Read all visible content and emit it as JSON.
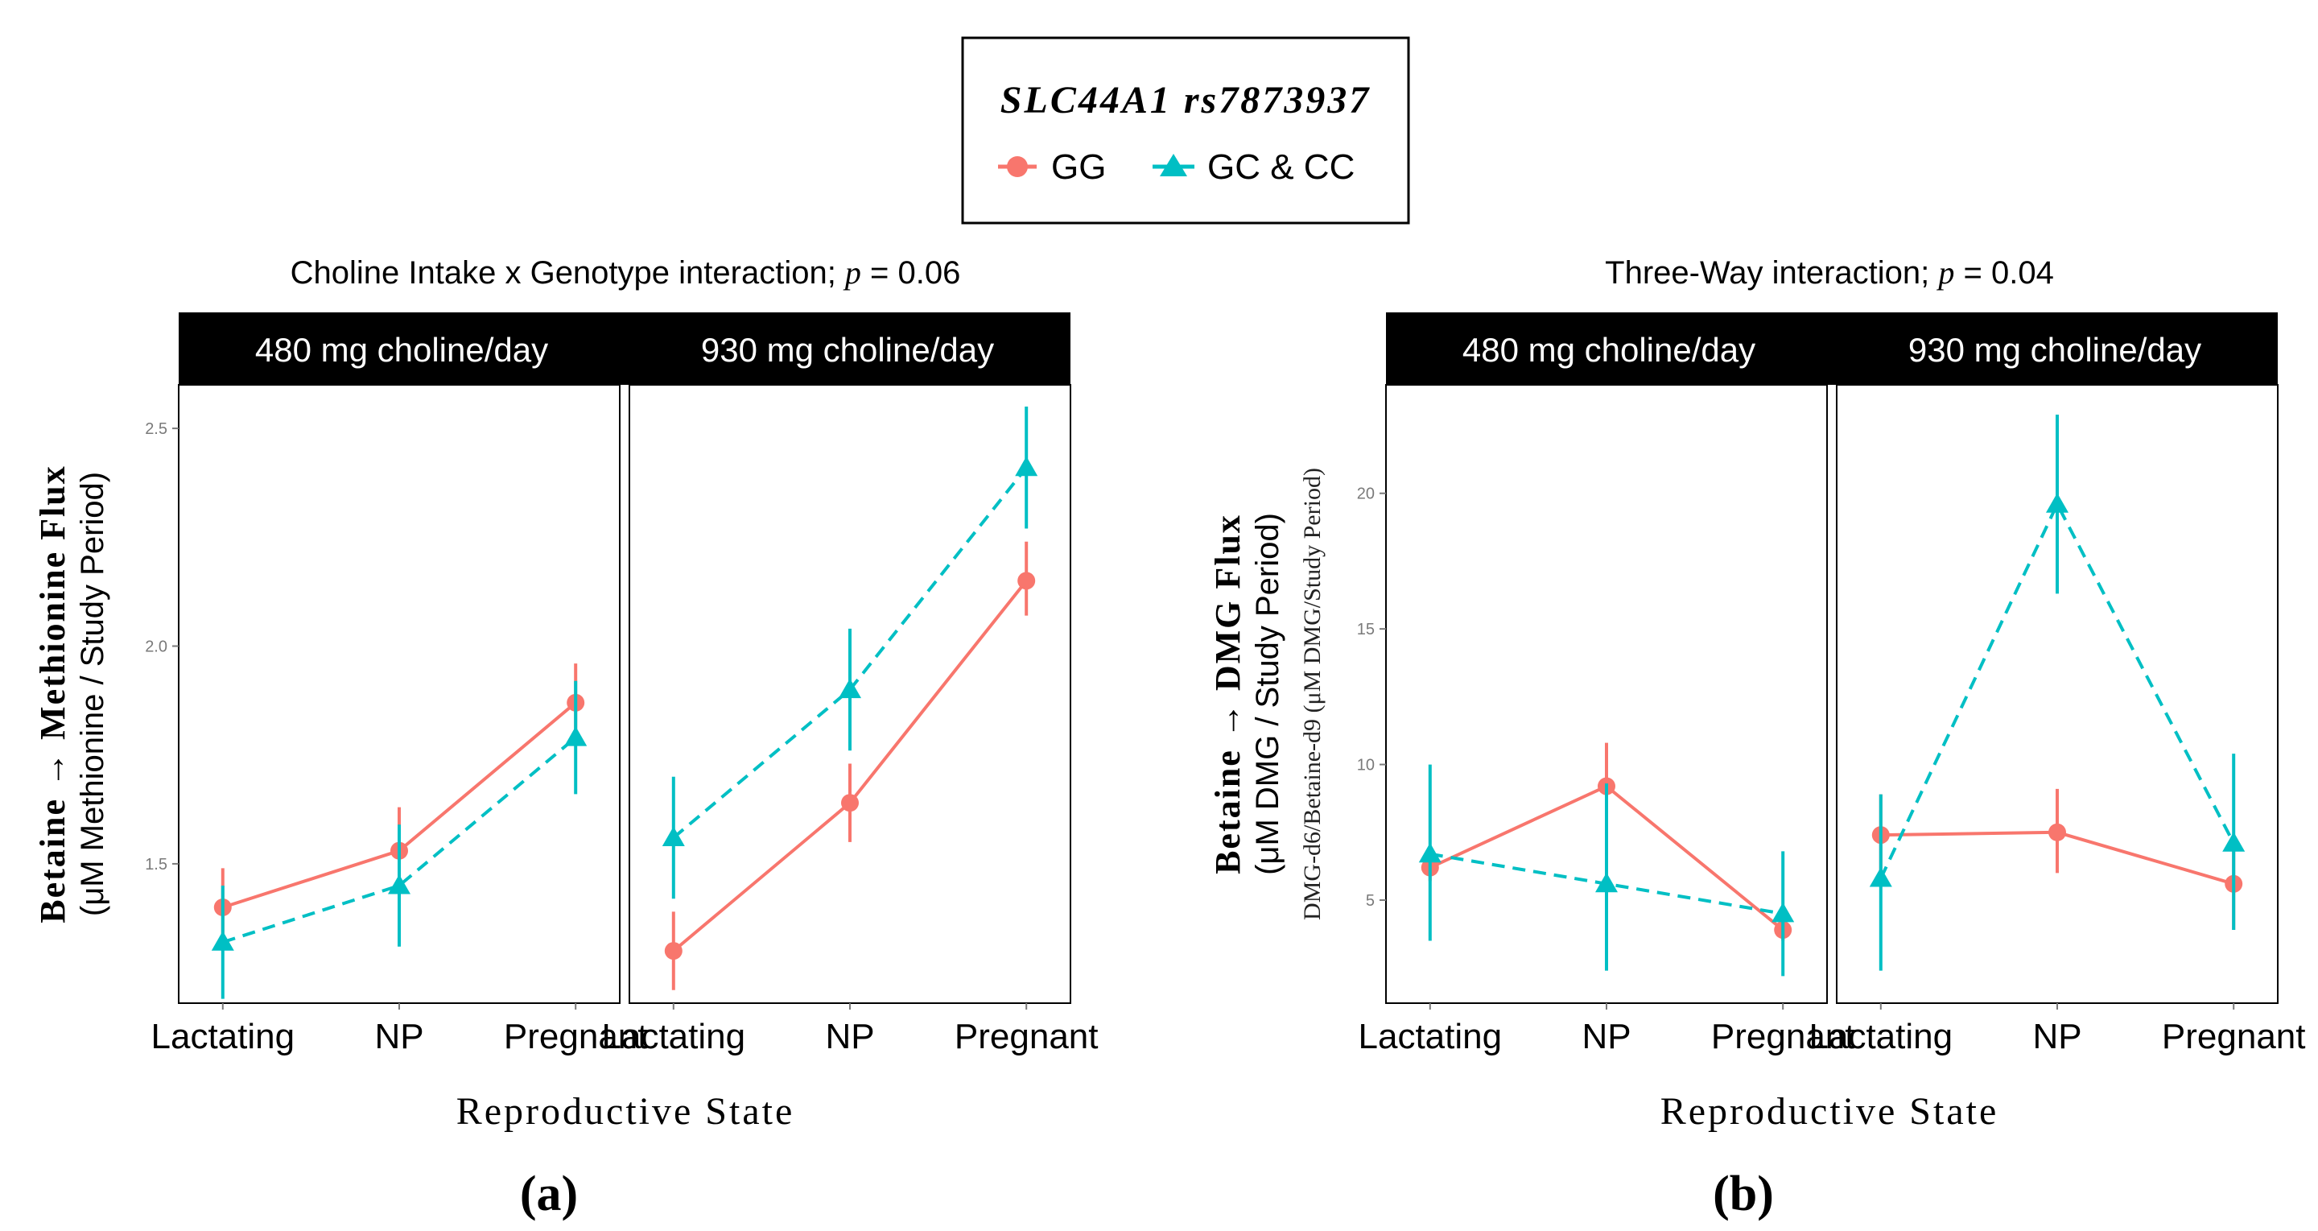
{
  "legend": {
    "title": "SLC44A1 rs7873937",
    "series": [
      {
        "name": "GG",
        "color": "#F8766D",
        "marker": "circle",
        "line": "solid"
      },
      {
        "name": "GC & CC",
        "color": "#00BFC4",
        "marker": "triangle",
        "line": "dashed"
      }
    ]
  },
  "chart_data": [
    {
      "type": "line",
      "panel_label": "(a)",
      "title_prefix": "Choline Intake x Genotype interaction; ",
      "title_p_symbol": "p",
      "title_p_value": " = 0.06",
      "ylabel_main": "Betaine → Methionine Flux",
      "ylabel_sub": "(μM Methionine / Study Period)",
      "xlabel": "Reproductive State",
      "ylim": [
        1.18,
        2.6
      ],
      "yticks": [
        1.5,
        2.0,
        2.5
      ],
      "ytick_labels": [
        "1.5",
        "2.0",
        "2.5"
      ],
      "categories": [
        "Lactating",
        "NP",
        "Pregnant"
      ],
      "facets": [
        {
          "label": "480 mg choline/day",
          "series": [
            {
              "name": "GG",
              "values": [
                1.4,
                1.53,
                1.87
              ],
              "lower": [
                1.31,
                1.43,
                1.78
              ],
              "upper": [
                1.49,
                1.63,
                1.96
              ]
            },
            {
              "name": "GC & CC",
              "values": [
                1.32,
                1.45,
                1.79
              ],
              "lower": [
                1.19,
                1.31,
                1.66
              ],
              "upper": [
                1.45,
                1.59,
                1.92
              ]
            }
          ]
        },
        {
          "label": "930 mg choline/day",
          "series": [
            {
              "name": "GG",
              "values": [
                1.3,
                1.64,
                2.15
              ],
              "lower": [
                1.21,
                1.55,
                2.07
              ],
              "upper": [
                1.39,
                1.73,
                2.24
              ]
            },
            {
              "name": "GC & CC",
              "values": [
                1.56,
                1.9,
                2.41
              ],
              "lower": [
                1.42,
                1.76,
                2.27
              ],
              "upper": [
                1.7,
                2.04,
                2.55
              ]
            }
          ]
        }
      ]
    },
    {
      "type": "line",
      "panel_label": "(b)",
      "title_prefix": "Three-Way interaction; ",
      "title_p_symbol": "p",
      "title_p_value": " = 0.04",
      "ylabel_main": "Betaine → DMG Flux",
      "ylabel_sub": "(μM DMG / Study Period)",
      "ylabel_faint": "DMG-d6/Betaine-d9 (μM DMG/Study Period)",
      "xlabel": "Reproductive State",
      "ylim": [
        1.2,
        24.0
      ],
      "yticks": [
        5,
        10,
        15,
        20
      ],
      "ytick_labels": [
        "5",
        "10",
        "15",
        "20"
      ],
      "categories": [
        "Lactating",
        "NP",
        "Pregnant"
      ],
      "facets": [
        {
          "label": "480 mg choline/day",
          "series": [
            {
              "name": "GG",
              "values": [
                6.2,
                9.2,
                3.9
              ],
              "lower": [
                5.7,
                7.6,
                3.5
              ],
              "upper": [
                6.7,
                10.8,
                4.3
              ]
            },
            {
              "name": "GC & CC",
              "values": [
                6.7,
                5.6,
                4.5
              ],
              "lower": [
                3.5,
                2.4,
                2.2
              ],
              "upper": [
                10.0,
                9.3,
                6.8
              ]
            }
          ]
        },
        {
          "label": "930 mg choline/day",
          "series": [
            {
              "name": "GG",
              "values": [
                7.4,
                7.5,
                5.6
              ],
              "lower": [
                6.0,
                6.0,
                3.9
              ],
              "upper": [
                8.9,
                9.1,
                7.3
              ]
            },
            {
              "name": "GC & CC",
              "values": [
                5.8,
                19.6,
                7.1
              ],
              "lower": [
                2.4,
                16.3,
                3.9
              ],
              "upper": [
                8.9,
                22.9,
                10.4
              ]
            }
          ]
        }
      ]
    }
  ]
}
